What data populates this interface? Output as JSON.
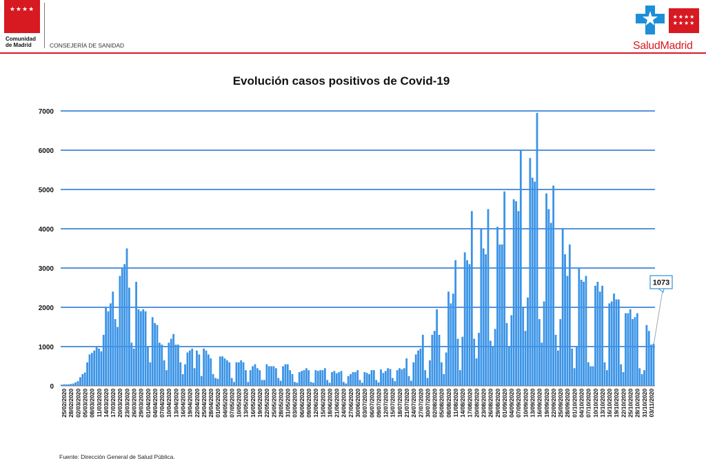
{
  "header": {
    "left_logo_name": "Comunidad de Madrid",
    "left_logo_line1": "Comunidad",
    "left_logo_line2": "de Madrid",
    "department": "CONSEJERÍA DE SANIDAD",
    "right_logo_part1": "Salud",
    "right_logo_part2": "Madrid",
    "stars_glyph": "★★★★",
    "brand_red": "#d71921",
    "brand_blue": "#1d8fd6"
  },
  "footer": {
    "source": "Fuente: Dirección General de Salud Pública."
  },
  "chart_data": {
    "type": "bar",
    "title": "Evolución casos positivos de Covid-19",
    "xlabel": "",
    "ylabel": "",
    "ylim": [
      0,
      7000
    ],
    "yticks": [
      0,
      1000,
      2000,
      3000,
      4000,
      5000,
      6000,
      7000
    ],
    "grid": true,
    "bar_color": "#3a93e6",
    "grid_color": "#1f6fcf",
    "start_date": "25/02/2020",
    "end_date": "05/11/2020",
    "tick_labels": [
      "25/02/2020",
      "28/02/2020",
      "02/03/2020",
      "05/03/2020",
      "08/03/2020",
      "11/03/2020",
      "14/03/2020",
      "17/03/2020",
      "20/03/2020",
      "23/03/2020",
      "26/03/2020",
      "29/03/2020",
      "01/04/2020",
      "04/04/2020",
      "07/04/2020",
      "10/04/2020",
      "13/04/2020",
      "16/04/2020",
      "19/04/2020",
      "22/04/2020",
      "25/04/2020",
      "28/04/2020",
      "01/05/2020",
      "04/05/2020",
      "07/05/2020",
      "10/05/2020",
      "13/05/2020",
      "16/05/2020",
      "19/05/2020",
      "22/05/2020",
      "25/05/2020",
      "28/05/2020",
      "31/05/2020",
      "03/06/2020",
      "06/06/2020",
      "09/06/2020",
      "12/06/2020",
      "15/06/2020",
      "18/06/2020",
      "21/06/2020",
      "24/06/2020",
      "27/06/2020",
      "30/06/2020",
      "03/07/2020",
      "06/07/2020",
      "09/07/2020",
      "12/07/2020",
      "15/07/2020",
      "18/07/2020",
      "21/07/2020",
      "24/07/2020",
      "27/07/2020",
      "30/07/2020",
      "02/08/2020",
      "05/08/2020",
      "08/08/2020",
      "11/08/2020",
      "14/08/2020",
      "17/08/2020",
      "20/08/2020",
      "23/08/2020",
      "26/08/2020",
      "29/08/2020",
      "01/09/2020",
      "04/09/2020",
      "07/09/2020",
      "10/09/2020",
      "13/09/2020",
      "16/09/2020",
      "19/09/2020",
      "22/09/2020",
      "25/09/2020",
      "28/09/2020",
      "01/10/2020",
      "04/10/2020",
      "07/10/2020",
      "10/10/2020",
      "13/10/2020",
      "16/10/2020",
      "19/10/2020",
      "22/10/2020",
      "25/10/2020",
      "28/10/2020",
      "31/10/2020",
      "03/11/2020"
    ],
    "values": [
      30,
      40,
      40,
      40,
      50,
      60,
      90,
      120,
      220,
      300,
      340,
      600,
      800,
      840,
      900,
      1000,
      950,
      880,
      1300,
      2000,
      1900,
      2100,
      2400,
      1700,
      1500,
      2800,
      3000,
      3100,
      3500,
      2500,
      1100,
      950,
      2650,
      1950,
      1900,
      1950,
      1900,
      1000,
      600,
      1750,
      1600,
      1550,
      1100,
      1050,
      650,
      400,
      1100,
      1200,
      1320,
      1050,
      1050,
      600,
      300,
      550,
      850,
      900,
      950,
      450,
      900,
      800,
      250,
      950,
      900,
      800,
      700,
      300,
      200,
      180,
      750,
      750,
      700,
      650,
      600,
      200,
      100,
      600,
      600,
      650,
      600,
      400,
      100,
      400,
      500,
      550,
      450,
      400,
      150,
      150,
      550,
      500,
      500,
      500,
      450,
      200,
      130,
      500,
      550,
      550,
      400,
      300,
      100,
      80,
      350,
      380,
      400,
      450,
      400,
      100,
      80,
      400,
      380,
      400,
      400,
      450,
      150,
      80,
      350,
      380,
      320,
      350,
      380,
      100,
      60,
      250,
      300,
      350,
      350,
      400,
      150,
      80,
      350,
      330,
      300,
      400,
      400,
      150,
      90,
      420,
      330,
      380,
      450,
      430,
      200,
      120,
      400,
      450,
      420,
      450,
      700,
      250,
      130,
      600,
      800,
      900,
      950,
      1300,
      400,
      200,
      650,
      1300,
      1400,
      1950,
      1300,
      600,
      300,
      850,
      2400,
      2100,
      2350,
      3200,
      1200,
      400,
      1250,
      3400,
      3200,
      3100,
      4450,
      1200,
      700,
      1350,
      4000,
      3500,
      3350,
      4500,
      1150,
      1000,
      1450,
      4050,
      3600,
      3600,
      4950,
      1600,
      1000,
      1800,
      4750,
      4700,
      4450,
      6000,
      2000,
      1400,
      2250,
      5800,
      5300,
      5200,
      6950,
      1700,
      1100,
      2150,
      4900,
      4500,
      4150,
      5100,
      1300,
      900,
      1700,
      4000,
      3350,
      2800,
      3600,
      950,
      450,
      1000,
      3000,
      2700,
      2650,
      2800,
      600,
      500,
      500,
      2550,
      2650,
      2400,
      2550,
      600,
      400,
      2100,
      2150,
      2350,
      2200,
      2200,
      550,
      350,
      1850,
      1850,
      1950,
      1700,
      1750,
      1850,
      450,
      300,
      400,
      1550,
      1400,
      1050,
      1073
    ],
    "annotation": {
      "label": "1073",
      "value": 1073,
      "target_index": "last"
    }
  }
}
